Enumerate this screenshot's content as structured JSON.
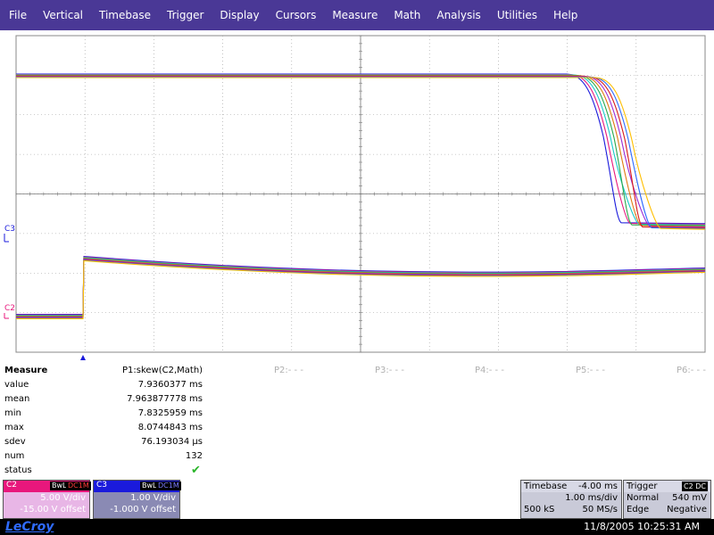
{
  "menu": [
    "File",
    "Vertical",
    "Timebase",
    "Trigger",
    "Display",
    "Cursors",
    "Measure",
    "Math",
    "Analysis",
    "Utilities",
    "Help"
  ],
  "channel_markers": {
    "c3": "C3",
    "c2": "C2"
  },
  "measure": {
    "header": "Measure",
    "p1": "P1:skew(C2,Math)",
    "slots": [
      "P2:- - -",
      "P3:- - -",
      "P4:- - -",
      "P5:- - -",
      "P6:- - -"
    ],
    "rows": [
      {
        "label": "value",
        "val": "7.9360377 ms"
      },
      {
        "label": "mean",
        "val": "7.963877778 ms"
      },
      {
        "label": "min",
        "val": "7.8325959 ms"
      },
      {
        "label": "max",
        "val": "8.0744843 ms"
      },
      {
        "label": "sdev",
        "val": "76.193034 µs"
      },
      {
        "label": "num",
        "val": "132"
      },
      {
        "label": "status",
        "val": ""
      }
    ]
  },
  "ch2": {
    "name": "C2",
    "tag1": "BwL",
    "tag2": "DC1M",
    "vdiv": "5.00 V/div",
    "offset": "-15.00 V offset",
    "color": "#e8177c"
  },
  "ch3": {
    "name": "C3",
    "tag1": "BwL",
    "tag2": "DC1M",
    "vdiv": "1.00 V/div",
    "offset": "-1.000 V offset",
    "color": "#1a1adc"
  },
  "timebase": {
    "title": "Timebase",
    "delay": "-4.00 ms",
    "tdiv": "1.00 ms/div",
    "samples": "500 kS",
    "rate": "50 MS/s"
  },
  "trigger": {
    "title": "Trigger",
    "tag": "C2 DC",
    "level": "540 mV",
    "mode": "Normal",
    "type": "Edge",
    "slope": "Negative"
  },
  "status": {
    "logo": "LeCroy",
    "datetime": "11/8/2005 10:25:31 AM"
  }
}
